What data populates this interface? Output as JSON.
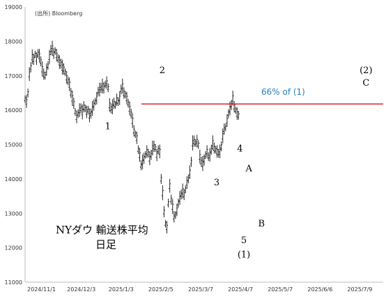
{
  "chart_data": {
    "type": "line",
    "title": "NYダウ 輸送株平均",
    "subtitle": "日足",
    "source": "(出所) Bloomberg",
    "xlabel": "",
    "ylabel": "",
    "ylim": [
      11000,
      19000
    ],
    "yticks": [
      "11000",
      "12000",
      "13000",
      "14000",
      "15000",
      "16000",
      "17000",
      "18000",
      "19000"
    ],
    "xticks": [
      "2024/11/1",
      "2024/12/3",
      "2025/1/3",
      "2025/2/5",
      "2025/3/7",
      "2025/4/7",
      "2025/5/7",
      "2025/6/6",
      "2025/7/9"
    ],
    "grid": false,
    "colors": {
      "price": "#222222",
      "level": "#e32626",
      "annotation": "#2a7fb8"
    },
    "level": {
      "value": 16180,
      "label": "66% of (1)"
    },
    "wave_labels": [
      {
        "text": "1",
        "x": 0.231,
        "y": 15450
      },
      {
        "text": "2",
        "x": 0.383,
        "y": 17080
      },
      {
        "text": "3",
        "x": 0.535,
        "y": 13820
      },
      {
        "text": "4",
        "x": 0.6,
        "y": 14800
      },
      {
        "text": "5",
        "x": 0.611,
        "y": 12130
      },
      {
        "text": "(1)",
        "x": 0.611,
        "y": 11720
      },
      {
        "text": "A",
        "x": 0.625,
        "y": 14220
      },
      {
        "text": "B",
        "x": 0.66,
        "y": 12620
      },
      {
        "text": "(2)",
        "x": 0.952,
        "y": 17080
      },
      {
        "text": "C",
        "x": 0.952,
        "y": 16710
      }
    ],
    "series": [
      {
        "values": [
          [
            0.0,
            16320
          ],
          [
            0.004,
            16250
          ],
          [
            0.008,
            16500
          ],
          [
            0.012,
            17050
          ],
          [
            0.016,
            17250
          ],
          [
            0.02,
            17550
          ],
          [
            0.024,
            17480
          ],
          [
            0.028,
            17620
          ],
          [
            0.032,
            17500
          ],
          [
            0.036,
            17650
          ],
          [
            0.04,
            17580
          ],
          [
            0.044,
            17420
          ],
          [
            0.048,
            17200
          ],
          [
            0.052,
            17050
          ],
          [
            0.056,
            17000
          ],
          [
            0.06,
            17180
          ],
          [
            0.064,
            17300
          ],
          [
            0.068,
            17550
          ],
          [
            0.072,
            17750
          ],
          [
            0.076,
            17800
          ],
          [
            0.08,
            17650
          ],
          [
            0.084,
            17720
          ],
          [
            0.088,
            17600
          ],
          [
            0.092,
            17500
          ],
          [
            0.096,
            17400
          ],
          [
            0.1,
            17350
          ],
          [
            0.104,
            17250
          ],
          [
            0.108,
            17200
          ],
          [
            0.112,
            17100
          ],
          [
            0.116,
            16950
          ],
          [
            0.12,
            16850
          ],
          [
            0.124,
            16750
          ],
          [
            0.128,
            16500
          ],
          [
            0.132,
            16350
          ],
          [
            0.136,
            16200
          ],
          [
            0.14,
            15950
          ],
          [
            0.144,
            15800
          ],
          [
            0.148,
            15900
          ],
          [
            0.152,
            16000
          ],
          [
            0.156,
            16050
          ],
          [
            0.16,
            15950
          ],
          [
            0.164,
            16100
          ],
          [
            0.168,
            16050
          ],
          [
            0.172,
            15950
          ],
          [
            0.176,
            16000
          ],
          [
            0.18,
            15850
          ],
          [
            0.184,
            15900
          ],
          [
            0.188,
            16050
          ],
          [
            0.192,
            16150
          ],
          [
            0.196,
            16250
          ],
          [
            0.2,
            16350
          ],
          [
            0.204,
            16550
          ],
          [
            0.208,
            16600
          ],
          [
            0.212,
            16650
          ],
          [
            0.216,
            16700
          ],
          [
            0.22,
            16650
          ],
          [
            0.224,
            16750
          ],
          [
            0.228,
            16800
          ],
          [
            0.232,
            16650
          ],
          [
            0.236,
            16150
          ],
          [
            0.24,
            16050
          ],
          [
            0.244,
            16100
          ],
          [
            0.248,
            16200
          ],
          [
            0.252,
            16150
          ],
          [
            0.256,
            16300
          ],
          [
            0.26,
            16250
          ],
          [
            0.264,
            16350
          ],
          [
            0.268,
            16600
          ],
          [
            0.272,
            16700
          ],
          [
            0.276,
            16500
          ],
          [
            0.28,
            16450
          ],
          [
            0.284,
            16350
          ],
          [
            0.288,
            16200
          ],
          [
            0.292,
            16050
          ],
          [
            0.296,
            15900
          ],
          [
            0.3,
            15700
          ],
          [
            0.304,
            15400
          ],
          [
            0.308,
            15300
          ],
          [
            0.312,
            15200
          ],
          [
            0.316,
            14850
          ],
          [
            0.32,
            14700
          ],
          [
            0.324,
            14400
          ],
          [
            0.328,
            14500
          ],
          [
            0.332,
            14600
          ],
          [
            0.336,
            14700
          ],
          [
            0.34,
            14800
          ],
          [
            0.344,
            14750
          ],
          [
            0.348,
            14600
          ],
          [
            0.352,
            14700
          ],
          [
            0.356,
            14900
          ],
          [
            0.36,
            14950
          ],
          [
            0.364,
            14900
          ],
          [
            0.368,
            14700
          ],
          [
            0.372,
            14850
          ],
          [
            0.376,
            14800
          ],
          [
            0.38,
            14000
          ],
          [
            0.384,
            13600
          ],
          [
            0.388,
            13050
          ],
          [
            0.392,
            12700
          ],
          [
            0.396,
            12600
          ],
          [
            0.4,
            13300
          ],
          [
            0.404,
            13800
          ],
          [
            0.408,
            13400
          ],
          [
            0.412,
            13200
          ],
          [
            0.416,
            12900
          ],
          [
            0.42,
            12950
          ],
          [
            0.424,
            13100
          ],
          [
            0.428,
            13300
          ],
          [
            0.432,
            13450
          ],
          [
            0.436,
            13550
          ],
          [
            0.44,
            13650
          ],
          [
            0.444,
            13550
          ],
          [
            0.448,
            13700
          ],
          [
            0.452,
            13900
          ],
          [
            0.456,
            14000
          ],
          [
            0.46,
            14200
          ],
          [
            0.464,
            14500
          ],
          [
            0.468,
            15050
          ],
          [
            0.472,
            15100
          ],
          [
            0.476,
            15050
          ],
          [
            0.48,
            15100
          ],
          [
            0.484,
            15000
          ],
          [
            0.488,
            14650
          ],
          [
            0.492,
            14500
          ],
          [
            0.496,
            14450
          ],
          [
            0.5,
            14550
          ],
          [
            0.504,
            14700
          ],
          [
            0.508,
            14800
          ],
          [
            0.512,
            14650
          ],
          [
            0.516,
            14700
          ],
          [
            0.52,
            14850
          ],
          [
            0.524,
            15050
          ],
          [
            0.528,
            14900
          ],
          [
            0.532,
            14850
          ],
          [
            0.536,
            14800
          ],
          [
            0.54,
            14750
          ],
          [
            0.544,
            14800
          ],
          [
            0.548,
            14950
          ],
          [
            0.552,
            15250
          ],
          [
            0.556,
            15450
          ],
          [
            0.56,
            15500
          ],
          [
            0.564,
            15700
          ],
          [
            0.568,
            15900
          ],
          [
            0.572,
            16050
          ],
          [
            0.576,
            16150
          ],
          [
            0.58,
            16350
          ],
          [
            0.584,
            16100
          ],
          [
            0.588,
            16000
          ],
          [
            0.592,
            15900
          ],
          [
            0.596,
            15850
          ]
        ]
      }
    ]
  }
}
